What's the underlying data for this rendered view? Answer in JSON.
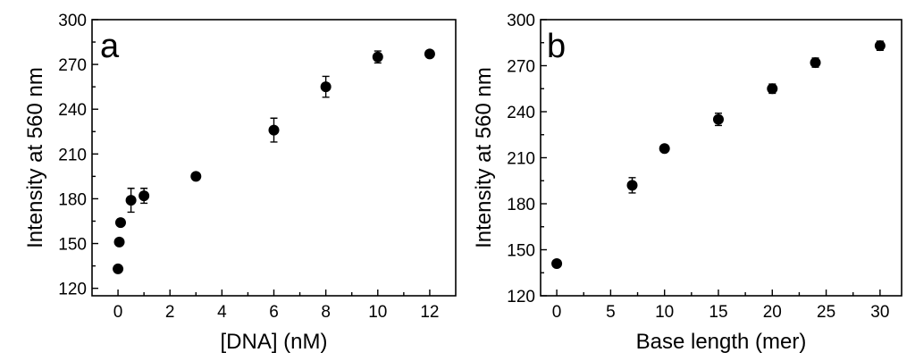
{
  "chart_data": [
    {
      "type": "scatter",
      "panel_label": "a",
      "xlabel": "[DNA] (nM)",
      "ylabel": "Intensity at 560 nm",
      "xlim": [
        -1,
        13
      ],
      "ylim": [
        115,
        300
      ],
      "xticks": [
        0,
        2,
        4,
        6,
        8,
        10,
        12
      ],
      "yticks": [
        120,
        150,
        180,
        210,
        240,
        270,
        300
      ],
      "grid": false,
      "points": [
        {
          "x": 0,
          "y": 133,
          "err": 2
        },
        {
          "x": 0.05,
          "y": 151,
          "err": 2
        },
        {
          "x": 0.1,
          "y": 164,
          "err": 2
        },
        {
          "x": 0.5,
          "y": 179,
          "err": 8
        },
        {
          "x": 1,
          "y": 182,
          "err": 5
        },
        {
          "x": 3,
          "y": 195,
          "err": 2
        },
        {
          "x": 6,
          "y": 226,
          "err": 8
        },
        {
          "x": 8,
          "y": 255,
          "err": 7
        },
        {
          "x": 10,
          "y": 275,
          "err": 4
        },
        {
          "x": 12,
          "y": 277,
          "err": 2
        }
      ]
    },
    {
      "type": "scatter",
      "panel_label": "b",
      "xlabel": "Base length (mer)",
      "ylabel": "Intensity at 560 nm",
      "xlim": [
        -1.5,
        32
      ],
      "ylim": [
        120,
        300
      ],
      "xticks": [
        0,
        5,
        10,
        15,
        20,
        25,
        30
      ],
      "yticks": [
        120,
        150,
        180,
        210,
        240,
        270,
        300
      ],
      "grid": false,
      "points": [
        {
          "x": 0,
          "y": 141,
          "err": 2
        },
        {
          "x": 7,
          "y": 192,
          "err": 5
        },
        {
          "x": 10,
          "y": 216,
          "err": 2
        },
        {
          "x": 15,
          "y": 235,
          "err": 4
        },
        {
          "x": 20,
          "y": 255,
          "err": 3
        },
        {
          "x": 24,
          "y": 272,
          "err": 3
        },
        {
          "x": 30,
          "y": 283,
          "err": 3
        }
      ]
    }
  ]
}
